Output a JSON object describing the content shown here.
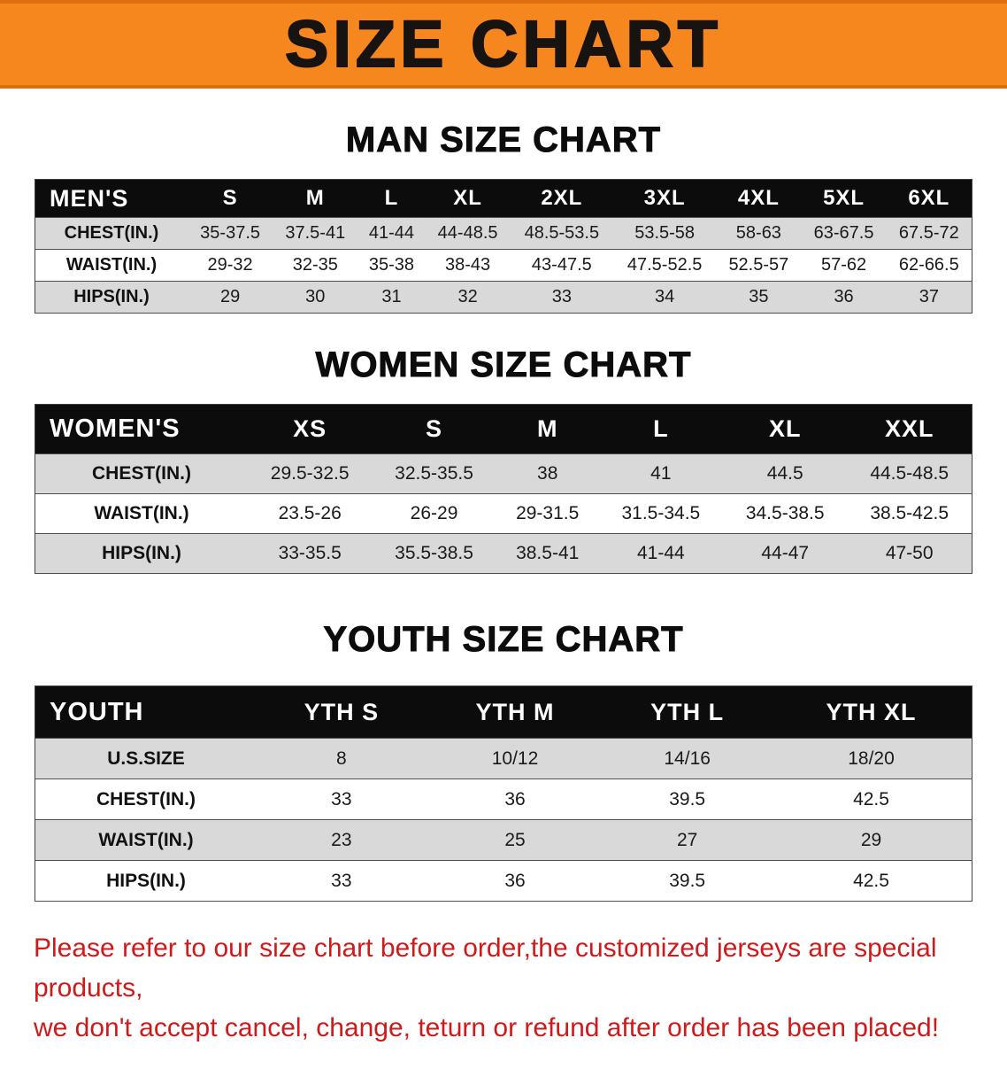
{
  "banner": {
    "title": "SIZE CHART",
    "bg_color": "#f6861e",
    "text_color": "#171310"
  },
  "sections": [
    {
      "key": "men",
      "heading": "MAN SIZE CHART",
      "header": [
        "MEN'S",
        "S",
        "M",
        "L",
        "XL",
        "2XL",
        "3XL",
        "4XL",
        "5XL",
        "6XL"
      ],
      "rows": [
        {
          "label": "CHEST(IN.)",
          "values": [
            "35-37.5",
            "37.5-41",
            "41-44",
            "44-48.5",
            "48.5-53.5",
            "53.5-58",
            "58-63",
            "63-67.5",
            "67.5-72"
          ]
        },
        {
          "label": "WAIST(IN.)",
          "values": [
            "29-32",
            "32-35",
            "35-38",
            "38-43",
            "43-47.5",
            "47.5-52.5",
            "52.5-57",
            "57-62",
            "62-66.5"
          ]
        },
        {
          "label": "HIPS(IN.)",
          "values": [
            "29",
            "30",
            "31",
            "32",
            "33",
            "34",
            "35",
            "36",
            "37"
          ]
        }
      ]
    },
    {
      "key": "women",
      "heading": "WOMEN SIZE CHART",
      "header": [
        "WOMEN'S",
        "XS",
        "S",
        "M",
        "L",
        "XL",
        "XXL"
      ],
      "rows": [
        {
          "label": "CHEST(IN.)",
          "values": [
            "29.5-32.5",
            "32.5-35.5",
            "38",
            "41",
            "44.5",
            "44.5-48.5"
          ]
        },
        {
          "label": "WAIST(IN.)",
          "values": [
            "23.5-26",
            "26-29",
            "29-31.5",
            "31.5-34.5",
            "34.5-38.5",
            "38.5-42.5"
          ]
        },
        {
          "label": "HIPS(IN.)",
          "values": [
            "33-35.5",
            "35.5-38.5",
            "38.5-41",
            "41-44",
            "44-47",
            "47-50"
          ]
        }
      ]
    },
    {
      "key": "youth",
      "heading": "YOUTH SIZE CHART",
      "header": [
        "YOUTH",
        "YTH S",
        "YTH M",
        "YTH L",
        "YTH XL"
      ],
      "rows": [
        {
          "label": "U.S.SIZE",
          "values": [
            "8",
            "10/12",
            "14/16",
            "18/20"
          ]
        },
        {
          "label": "CHEST(IN.)",
          "values": [
            "33",
            "36",
            "39.5",
            "42.5"
          ]
        },
        {
          "label": "WAIST(IN.)",
          "values": [
            "23",
            "25",
            "27",
            "29"
          ]
        },
        {
          "label": "HIPS(IN.)",
          "values": [
            "33",
            "36",
            "39.5",
            "42.5"
          ]
        }
      ]
    }
  ],
  "footer": {
    "lines": [
      "Please refer to our size chart before order,the customized jerseys are special products,",
      "we don't accept cancel, change, teturn or refund after order has been placed!"
    ],
    "text_color": "#ce1a1a"
  }
}
